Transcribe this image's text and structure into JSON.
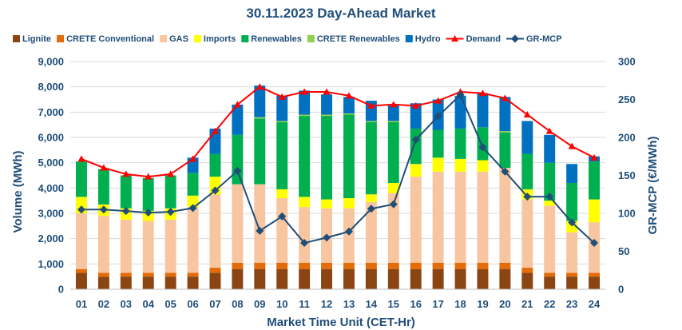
{
  "chart_data": {
    "type": "bar",
    "title": "30.11.2023  Day-Ahead Market",
    "xlabel": "Market Time Unit (CET-Hr)",
    "ylabel": "Volume (MWh)",
    "y2label": "GR-MCP (€/MWh)",
    "ylim": [
      0,
      9000
    ],
    "y2lim": [
      0,
      300
    ],
    "yticks": [
      "0",
      "1,000",
      "2,000",
      "3,000",
      "4,000",
      "5,000",
      "6,000",
      "7,000",
      "8,000",
      "9,000"
    ],
    "y2ticks": [
      "0",
      "50",
      "100",
      "150",
      "200",
      "250",
      "300"
    ],
    "categories": [
      "01",
      "02",
      "03",
      "04",
      "05",
      "06",
      "07",
      "08",
      "09",
      "10",
      "11",
      "12",
      "13",
      "14",
      "15",
      "16",
      "17",
      "18",
      "19",
      "20",
      "21",
      "22",
      "23",
      "24"
    ],
    "stacked_series": [
      {
        "name": "Lignite",
        "color": "#8b4513",
        "values": [
          650,
          500,
          500,
          500,
          500,
          500,
          650,
          800,
          800,
          800,
          800,
          800,
          800,
          800,
          800,
          800,
          800,
          800,
          800,
          800,
          650,
          500,
          500,
          500
        ]
      },
      {
        "name": "CRETE Conventional",
        "color": "#e36c09",
        "values": [
          150,
          150,
          150,
          150,
          150,
          150,
          200,
          250,
          250,
          250,
          250,
          250,
          250,
          250,
          250,
          250,
          250,
          250,
          250,
          250,
          200,
          150,
          150,
          150
        ]
      },
      {
        "name": "GAS",
        "color": "#f7c6a0",
        "values": [
          2200,
          2250,
          2100,
          2050,
          2100,
          2600,
          2900,
          3100,
          3100,
          2550,
          2200,
          2150,
          2150,
          2400,
          2750,
          3400,
          3600,
          3600,
          3600,
          3750,
          2700,
          2650,
          1600,
          2000
        ]
      },
      {
        "name": "Imports",
        "color": "#ffff00",
        "values": [
          650,
          450,
          450,
          400,
          450,
          450,
          700,
          0,
          0,
          350,
          400,
          350,
          400,
          300,
          400,
          500,
          550,
          500,
          450,
          0,
          400,
          200,
          450,
          900
        ]
      },
      {
        "name": "Renewables",
        "color": "#00b050",
        "values": [
          1400,
          1400,
          1300,
          1300,
          1300,
          900,
          900,
          1950,
          2600,
          2650,
          3200,
          3300,
          3300,
          2850,
          2400,
          1400,
          1100,
          1200,
          1300,
          1400,
          1400,
          1500,
          1500,
          1500
        ]
      },
      {
        "name": "CRETE Renewables",
        "color": "#92d050",
        "values": [
          0,
          0,
          0,
          0,
          0,
          0,
          0,
          0,
          50,
          50,
          50,
          50,
          50,
          50,
          50,
          0,
          0,
          0,
          0,
          50,
          0,
          0,
          0,
          0
        ]
      },
      {
        "name": "Hydro",
        "color": "#0070c0",
        "values": [
          0,
          0,
          0,
          0,
          0,
          600,
          1000,
          1200,
          1250,
          1000,
          950,
          800,
          650,
          800,
          650,
          1000,
          1200,
          1300,
          1350,
          1350,
          1300,
          1100,
          750,
          200
        ]
      }
    ],
    "line_series": [
      {
        "name": "Demand",
        "color": "#ff0000",
        "axis": "left",
        "marker": "triangle",
        "values": [
          5150,
          4800,
          4550,
          4450,
          4550,
          5150,
          6250,
          7300,
          8000,
          7600,
          7800,
          7800,
          7650,
          7250,
          7300,
          7250,
          7450,
          7800,
          7750,
          7550,
          6900,
          6250,
          5650,
          5200
        ]
      },
      {
        "name": "GR-MCP",
        "color": "#1f4e79",
        "axis": "right",
        "marker": "diamond",
        "values": [
          105,
          105,
          103,
          101,
          102,
          107,
          130,
          156,
          77,
          96,
          61,
          68,
          76,
          106,
          112,
          197,
          228,
          256,
          187,
          155,
          122,
          122,
          88,
          61
        ]
      }
    ],
    "legend": [
      {
        "name": "Lignite",
        "kind": "box",
        "color": "#8b4513"
      },
      {
        "name": "CRETE Conventional",
        "kind": "box",
        "color": "#e36c09"
      },
      {
        "name": "GAS",
        "kind": "box",
        "color": "#f7c6a0"
      },
      {
        "name": "Imports",
        "kind": "box",
        "color": "#ffff00"
      },
      {
        "name": "Renewables",
        "kind": "box",
        "color": "#00b050"
      },
      {
        "name": "CRETE Renewables",
        "kind": "box",
        "color": "#92d050"
      },
      {
        "name": "Hydro",
        "kind": "box",
        "color": "#0070c0"
      },
      {
        "name": "Demand",
        "kind": "line-triangle",
        "color": "#ff0000"
      },
      {
        "name": "GR-MCP",
        "kind": "line-diamond",
        "color": "#1f4e79"
      }
    ]
  }
}
